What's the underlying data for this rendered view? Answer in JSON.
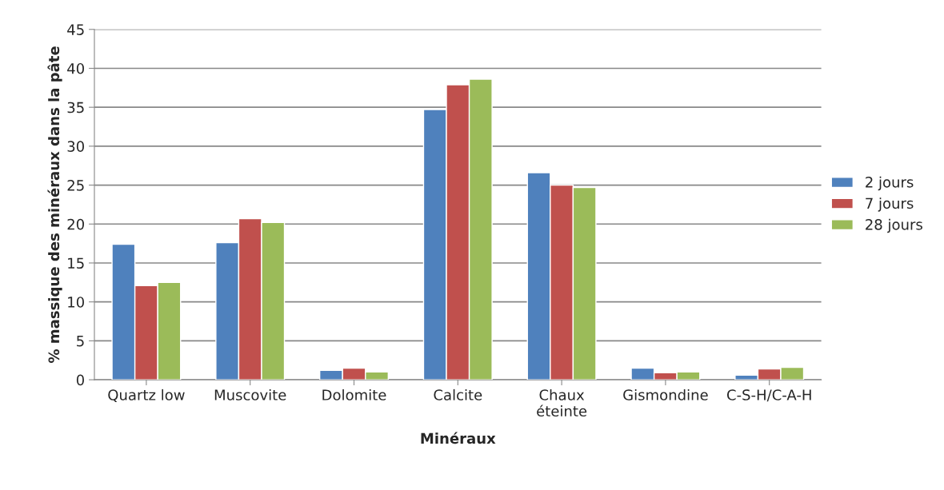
{
  "chart_data": {
    "type": "bar",
    "xlabel": "Minéraux",
    "ylabel": "% massique des minéraux dans la pâte",
    "categories": [
      "Quartz low",
      "Muscovite",
      "Dolomite",
      "Calcite",
      "Chaux\néteinte",
      "Gismondine",
      "C-S-H/C-A-H"
    ],
    "series": [
      {
        "name": "2 jours",
        "color": "#4f81bd",
        "values": [
          17.4,
          17.6,
          1.2,
          34.7,
          26.6,
          1.5,
          0.6
        ]
      },
      {
        "name": "7 jours",
        "color": "#c0504d",
        "values": [
          12.1,
          20.7,
          1.5,
          37.9,
          25.0,
          0.9,
          1.4
        ]
      },
      {
        "name": "28 jours",
        "color": "#9bbb59",
        "values": [
          12.5,
          20.2,
          1.0,
          38.6,
          24.7,
          1.0,
          1.6
        ]
      }
    ],
    "ylim": [
      0,
      45
    ],
    "yticks": [
      0,
      5,
      10,
      15,
      20,
      25,
      30,
      35,
      40,
      45
    ],
    "grid": "y",
    "legend": "right"
  }
}
